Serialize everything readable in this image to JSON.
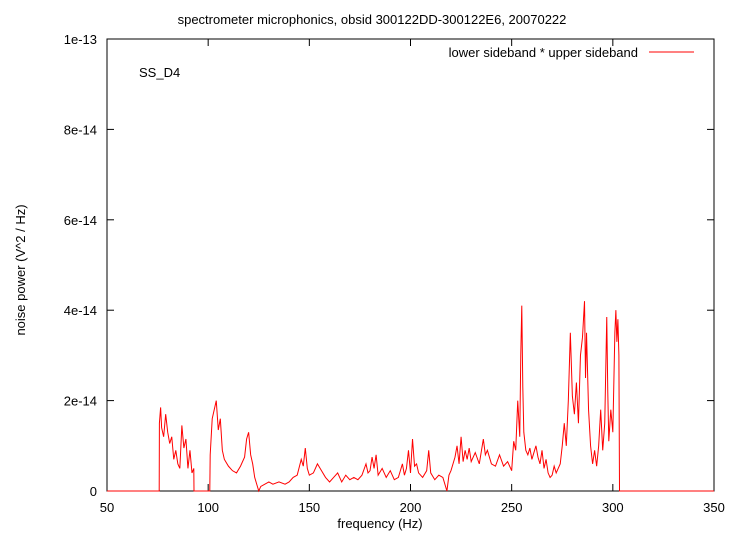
{
  "chart_data": {
    "type": "line",
    "title": "spectrometer microphonics, obsid 300122DD-300122E6, 20070222",
    "xlabel": "frequency (Hz)",
    "ylabel": "noise power (V^2 / Hz)",
    "xlim": [
      50,
      350
    ],
    "ylim": [
      0,
      1e-13
    ],
    "xticks": [
      50,
      100,
      150,
      200,
      250,
      300,
      350
    ],
    "xtick_labels": [
      "50",
      "100",
      "150",
      "200",
      "250",
      "300",
      "350"
    ],
    "yticks": [
      0,
      2e-14,
      4e-14,
      6e-14,
      8e-14,
      1e-13
    ],
    "ytick_labels": [
      "0",
      "2e-14",
      "4e-14",
      "6e-14",
      "8e-14",
      "1e-13"
    ],
    "legend_position": "top-right",
    "annotation": "SS_D4",
    "grid": false,
    "series": [
      {
        "name": "lower sideband * upper sideband",
        "color": "#ff0000",
        "points": [
          [
            50,
            0
          ],
          [
            75.8,
            0
          ],
          [
            75.9,
            1.5e-14
          ],
          [
            76.5,
            1.85e-14
          ],
          [
            77,
            1.4e-14
          ],
          [
            78,
            1.2e-14
          ],
          [
            79,
            1.7e-14
          ],
          [
            80,
            1.3e-14
          ],
          [
            81,
            1.05e-14
          ],
          [
            82,
            1.2e-14
          ],
          [
            83,
            7e-15
          ],
          [
            84,
            9e-15
          ],
          [
            85,
            6e-15
          ],
          [
            86,
            5e-15
          ],
          [
            87,
            1.45e-14
          ],
          [
            88,
            9.5e-15
          ],
          [
            89,
            1.15e-14
          ],
          [
            90,
            5e-15
          ],
          [
            91,
            9e-15
          ],
          [
            92,
            4e-15
          ],
          [
            92.9,
            5e-15
          ],
          [
            93,
            0
          ],
          [
            100.8,
            0
          ],
          [
            101,
            8e-15
          ],
          [
            102,
            1.6e-14
          ],
          [
            103,
            1.8e-14
          ],
          [
            104,
            2e-14
          ],
          [
            105,
            1.35e-14
          ],
          [
            106,
            1.6e-14
          ],
          [
            107,
            9e-15
          ],
          [
            108,
            7e-15
          ],
          [
            110,
            5.5e-15
          ],
          [
            112,
            4.5e-15
          ],
          [
            114,
            4e-15
          ],
          [
            116,
            5.5e-15
          ],
          [
            118,
            7.5e-15
          ],
          [
            119,
            1.15e-14
          ],
          [
            120,
            1.3e-14
          ],
          [
            121,
            8e-15
          ],
          [
            122,
            6e-15
          ],
          [
            123,
            3e-15
          ],
          [
            124,
            1.5e-15
          ],
          [
            125,
            0
          ],
          [
            126,
            1e-15
          ],
          [
            128,
            1.5e-15
          ],
          [
            130,
            2e-15
          ],
          [
            132,
            1.5e-15
          ],
          [
            135,
            2e-15
          ],
          [
            138,
            1.5e-15
          ],
          [
            140,
            2e-15
          ],
          [
            142,
            3e-15
          ],
          [
            144,
            3.5e-15
          ],
          [
            146,
            7e-15
          ],
          [
            147,
            5.5e-15
          ],
          [
            148,
            9.5e-15
          ],
          [
            149,
            5e-15
          ],
          [
            150,
            3.5e-15
          ],
          [
            152,
            4e-15
          ],
          [
            154,
            6e-15
          ],
          [
            156,
            4.5e-15
          ],
          [
            158,
            3e-15
          ],
          [
            160,
            2e-15
          ],
          [
            162,
            3e-15
          ],
          [
            164,
            4e-15
          ],
          [
            166,
            2e-15
          ],
          [
            168,
            3.5e-15
          ],
          [
            170,
            2.5e-15
          ],
          [
            172,
            3e-15
          ],
          [
            174,
            2.5e-15
          ],
          [
            176,
            3.5e-15
          ],
          [
            178,
            6e-15
          ],
          [
            179,
            4e-15
          ],
          [
            180,
            4.5e-15
          ],
          [
            181,
            7.5e-15
          ],
          [
            182,
            5e-15
          ],
          [
            183,
            8e-15
          ],
          [
            184,
            3.5e-15
          ],
          [
            186,
            5e-15
          ],
          [
            188,
            3e-15
          ],
          [
            190,
            4.5e-15
          ],
          [
            192,
            2.5e-15
          ],
          [
            194,
            3e-15
          ],
          [
            196,
            6e-15
          ],
          [
            197,
            3.5e-15
          ],
          [
            198,
            5e-15
          ],
          [
            199,
            9e-15
          ],
          [
            200,
            4e-15
          ],
          [
            201,
            1.15e-14
          ],
          [
            202,
            5.5e-15
          ],
          [
            203,
            6e-15
          ],
          [
            204,
            4e-15
          ],
          [
            206,
            3e-15
          ],
          [
            208,
            4.5e-15
          ],
          [
            209,
            9e-15
          ],
          [
            210,
            4e-15
          ],
          [
            212,
            2.5e-15
          ],
          [
            214,
            3.5e-15
          ],
          [
            216,
            3e-15
          ],
          [
            218,
            0
          ],
          [
            219,
            3.5e-15
          ],
          [
            220,
            4.5e-15
          ],
          [
            222,
            7.5e-15
          ],
          [
            223,
            1e-14
          ],
          [
            224,
            6e-15
          ],
          [
            225,
            1.2e-14
          ],
          [
            226,
            6.5e-15
          ],
          [
            227,
            9e-15
          ],
          [
            228,
            7e-15
          ],
          [
            229,
            9.5e-15
          ],
          [
            230,
            6.5e-15
          ],
          [
            232,
            8.5e-15
          ],
          [
            234,
            6e-15
          ],
          [
            236,
            1.15e-14
          ],
          [
            237,
            8e-15
          ],
          [
            238,
            9e-15
          ],
          [
            240,
            6e-15
          ],
          [
            242,
            5.5e-15
          ],
          [
            244,
            8e-15
          ],
          [
            246,
            5.5e-15
          ],
          [
            248,
            6.5e-15
          ],
          [
            250,
            4.5e-15
          ],
          [
            251,
            1.1e-14
          ],
          [
            252,
            9e-15
          ],
          [
            253,
            2e-14
          ],
          [
            254,
            1.2e-14
          ],
          [
            254.5,
            3e-14
          ],
          [
            255,
            4.1e-14
          ],
          [
            255.5,
            2.3e-14
          ],
          [
            256,
            1.3e-14
          ],
          [
            257,
            9e-15
          ],
          [
            258,
            8e-15
          ],
          [
            259,
            9.5e-15
          ],
          [
            260,
            7e-15
          ],
          [
            261,
            8.5e-15
          ],
          [
            262,
            1e-14
          ],
          [
            263,
            7.5e-15
          ],
          [
            264,
            6e-15
          ],
          [
            265,
            9e-15
          ],
          [
            266,
            5e-15
          ],
          [
            267,
            7e-15
          ],
          [
            268,
            4e-15
          ],
          [
            269,
            3e-15
          ],
          [
            270,
            3.5e-15
          ],
          [
            271,
            5.5e-15
          ],
          [
            272,
            4e-15
          ],
          [
            273,
            5e-15
          ],
          [
            274,
            6e-15
          ],
          [
            275,
            1e-14
          ],
          [
            276,
            1.5e-14
          ],
          [
            277,
            1e-14
          ],
          [
            278,
            2e-14
          ],
          [
            279,
            3.5e-14
          ],
          [
            280,
            2.1e-14
          ],
          [
            281,
            1.7e-14
          ],
          [
            282,
            2.4e-14
          ],
          [
            283,
            1.5e-14
          ],
          [
            284,
            3e-14
          ],
          [
            285,
            3.4e-14
          ],
          [
            286,
            4.2e-14
          ],
          [
            286.5,
            2.5e-14
          ],
          [
            287,
            3.5e-14
          ],
          [
            288,
            1.8e-14
          ],
          [
            289,
            1e-14
          ],
          [
            290,
            6e-15
          ],
          [
            291,
            9e-15
          ],
          [
            292,
            5.5e-15
          ],
          [
            293,
            1e-14
          ],
          [
            294,
            1.8e-14
          ],
          [
            295,
            9e-15
          ],
          [
            296,
            1.5e-14
          ],
          [
            297,
            3.85e-14
          ],
          [
            297.5,
            2.2e-14
          ],
          [
            298,
            1.1e-14
          ],
          [
            299,
            1.8e-14
          ],
          [
            300,
            1.3e-14
          ],
          [
            301,
            3.5e-14
          ],
          [
            301.5,
            4e-14
          ],
          [
            302,
            3.3e-14
          ],
          [
            302.5,
            3.8e-14
          ],
          [
            303,
            3e-14
          ],
          [
            303.3,
            0
          ],
          [
            350,
            0
          ]
        ]
      }
    ]
  }
}
